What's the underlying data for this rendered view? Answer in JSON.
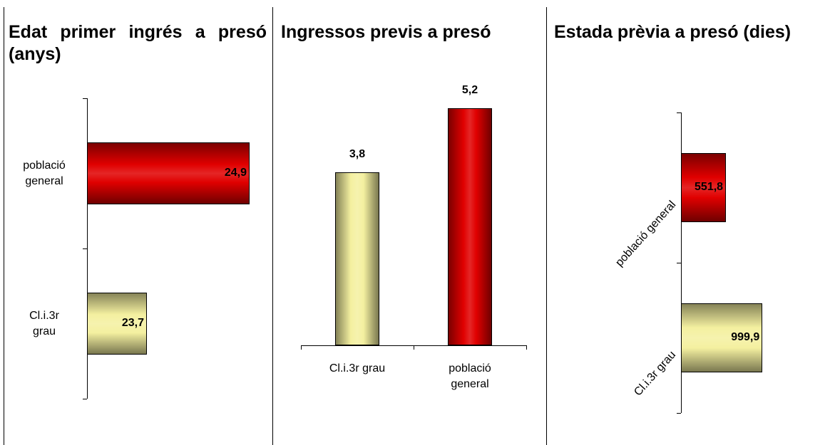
{
  "chart_data": [
    {
      "type": "bar",
      "orientation": "horizontal",
      "title": "Edat primer ingrés a presó (anys)",
      "categories": [
        "població general",
        "Cl.i.3r grau"
      ],
      "values": [
        24.9,
        23.7
      ],
      "value_labels": [
        "24,9",
        "23,7"
      ],
      "colors": [
        "#e00000",
        "#f4f0a0"
      ],
      "xlim": [
        23,
        25
      ]
    },
    {
      "type": "bar",
      "orientation": "vertical",
      "title": "Ingressos previs a presó",
      "categories": [
        "Cl.i.3r grau",
        "població general"
      ],
      "values": [
        3.8,
        5.2
      ],
      "value_labels": [
        "3,8",
        "5,2"
      ],
      "colors": [
        "#f4f0a0",
        "#e00000"
      ],
      "ylim": [
        0,
        6
      ]
    },
    {
      "type": "bar",
      "orientation": "horizontal",
      "title": "Estada prèvia a presó (dies)",
      "categories": [
        "població general",
        "Cl.i.3r grau"
      ],
      "values": [
        551.8,
        999.9
      ],
      "value_labels": [
        "551,8",
        "999,9"
      ],
      "colors": [
        "#e00000",
        "#f4f0a0"
      ],
      "xlim": [
        0,
        1400
      ]
    }
  ]
}
